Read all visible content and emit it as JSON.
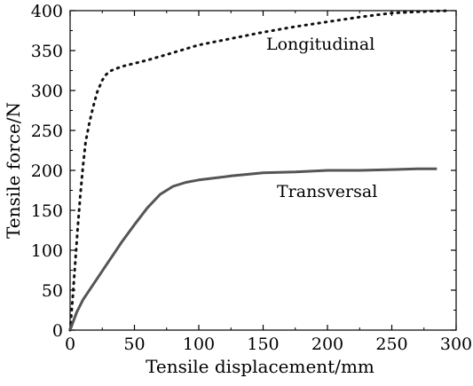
{
  "chart_data": {
    "type": "line",
    "title": "",
    "xlabel": "Tensile displacement/mm",
    "ylabel": "Tensile force/N",
    "xlim": [
      0,
      300
    ],
    "ylim": [
      0,
      400
    ],
    "xticks": [
      "0",
      "50",
      "100",
      "150",
      "200",
      "250",
      "300"
    ],
    "yticks": [
      "0",
      "50",
      "100",
      "150",
      "200",
      "250",
      "300",
      "350",
      "400"
    ],
    "grid": false,
    "legend": "none",
    "annotations": [
      "Longitudinal",
      "Transversal"
    ],
    "series": [
      {
        "name": "Longitudinal",
        "style": "dotted",
        "color": "#111111",
        "x": [
          0,
          2,
          4,
          6,
          8,
          10,
          12,
          15,
          18,
          21,
          25,
          28,
          32,
          40,
          50,
          60,
          75,
          100,
          125,
          150,
          175,
          200,
          225,
          250,
          275,
          295
        ],
        "y": [
          0,
          40,
          85,
          130,
          170,
          205,
          235,
          260,
          280,
          298,
          313,
          320,
          325,
          330,
          334,
          338,
          345,
          357,
          365,
          373,
          380,
          386,
          392,
          397,
          399,
          400
        ]
      },
      {
        "name": "Transversal",
        "style": "solid",
        "color": "#555555",
        "x": [
          0,
          5,
          10,
          20,
          30,
          40,
          50,
          60,
          70,
          80,
          90,
          100,
          110,
          125,
          150,
          175,
          200,
          225,
          250,
          270,
          285
        ],
        "y": [
          0,
          22,
          38,
          62,
          86,
          110,
          132,
          153,
          170,
          180,
          185,
          188,
          190,
          193,
          197,
          198,
          200,
          200,
          201,
          202,
          202
        ]
      }
    ]
  }
}
